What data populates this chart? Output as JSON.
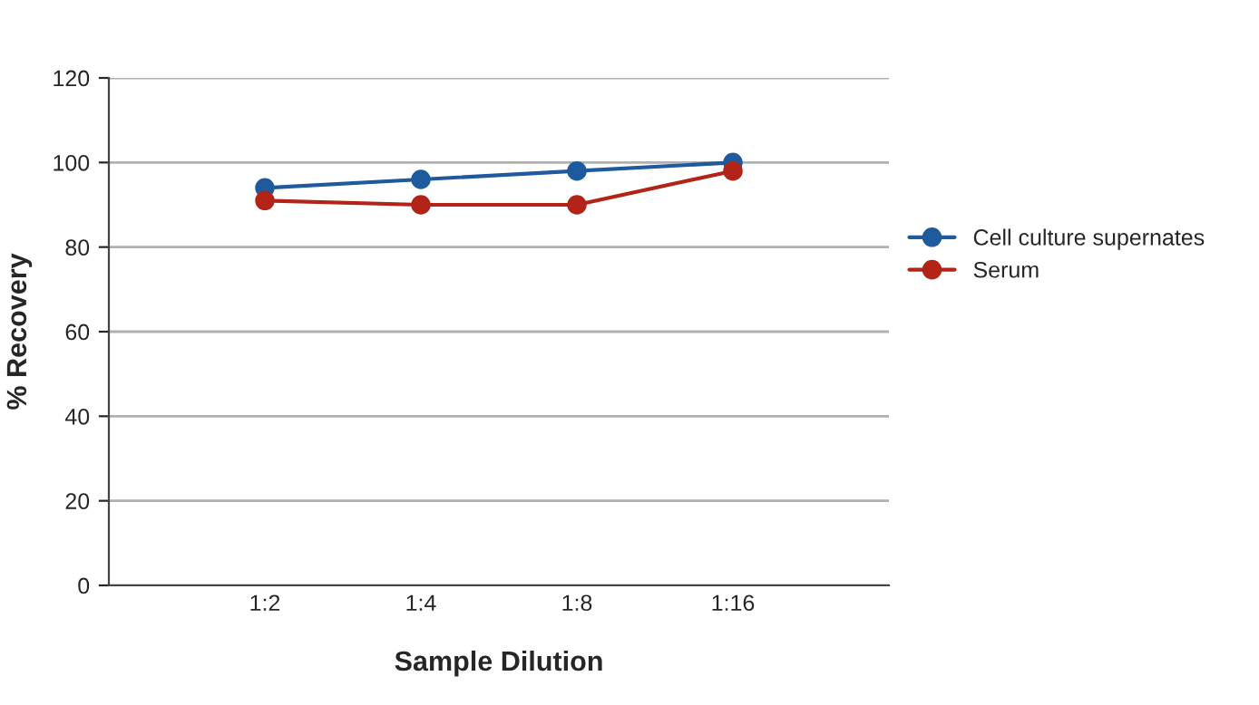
{
  "chart_data": {
    "type": "line",
    "xlabel": "Sample Dilution",
    "ylabel": "% Recovery",
    "categories": [
      "1:2",
      "1:4",
      "1:8",
      "1:16"
    ],
    "series": [
      {
        "name": "Cell culture supernates",
        "color": "#1f5a9e",
        "values": [
          94,
          96,
          98,
          100
        ]
      },
      {
        "name": "Serum",
        "color": "#b22418",
        "values": [
          91,
          90,
          90,
          98
        ]
      }
    ],
    "ylim": [
      0,
      120
    ],
    "yticks": [
      0,
      20,
      40,
      60,
      80,
      100,
      120
    ],
    "grid": "y",
    "legend": "right",
    "marker": "circle",
    "line_style": "solid"
  }
}
